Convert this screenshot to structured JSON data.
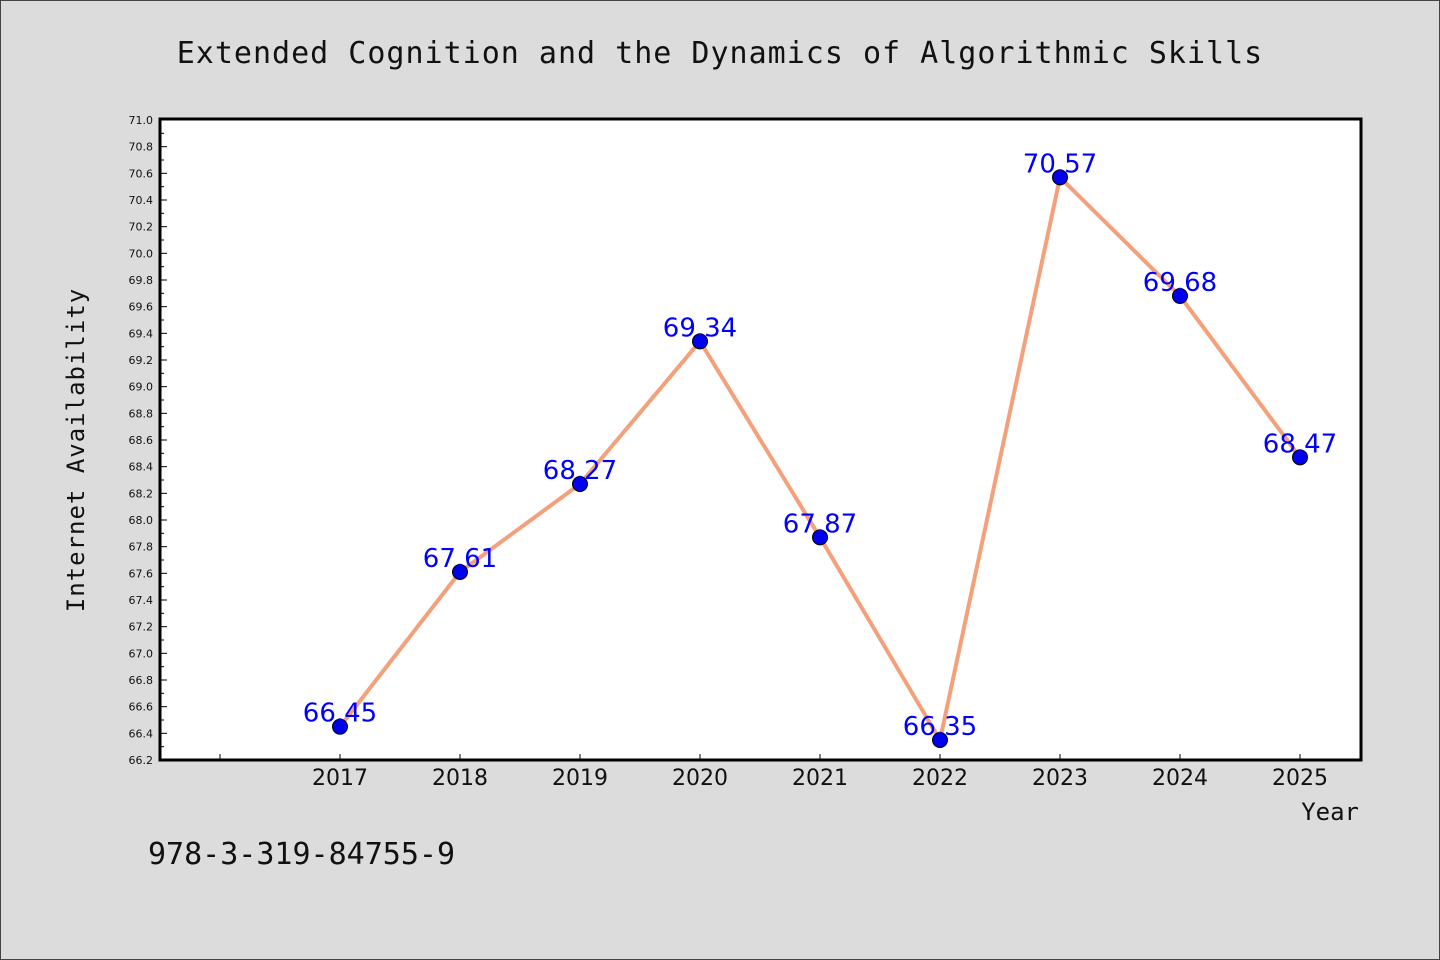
{
  "chart_data": {
    "type": "line",
    "title": "Extended Cognition and the Dynamics of Algorithmic Skills",
    "xlabel": "Year",
    "ylabel": "Internet Availability",
    "categories": [
      "2017",
      "2018",
      "2019",
      "2020",
      "2021",
      "2022",
      "2023",
      "2024",
      "2025"
    ],
    "series": [
      {
        "values": [
          66.45,
          67.61,
          68.27,
          69.34,
          67.87,
          66.35,
          70.57,
          69.68,
          68.47
        ]
      }
    ],
    "ylim": [
      66.2,
      71.0
    ],
    "ytick_labels": [
      "66.2",
      "66.4",
      "66.6",
      "66.8",
      "67.0",
      "67.2",
      "67.4",
      "67.6",
      "67.8",
      "68.0",
      "68.2",
      "68.4",
      "68.6",
      "68.8",
      "69.0",
      "69.2",
      "69.4",
      "69.6",
      "69.8",
      "70.0",
      "70.2",
      "70.4",
      "70.6",
      "70.8",
      "71.0"
    ],
    "grid": false,
    "data_labels": true,
    "colors": {
      "line": "#f4a07a",
      "marker": "#0000ee",
      "label": "#0000ff",
      "plot_bg": "#ffffff",
      "page_bg": "#dcdcdc"
    }
  },
  "footer_text": "978-3-319-84755-9"
}
